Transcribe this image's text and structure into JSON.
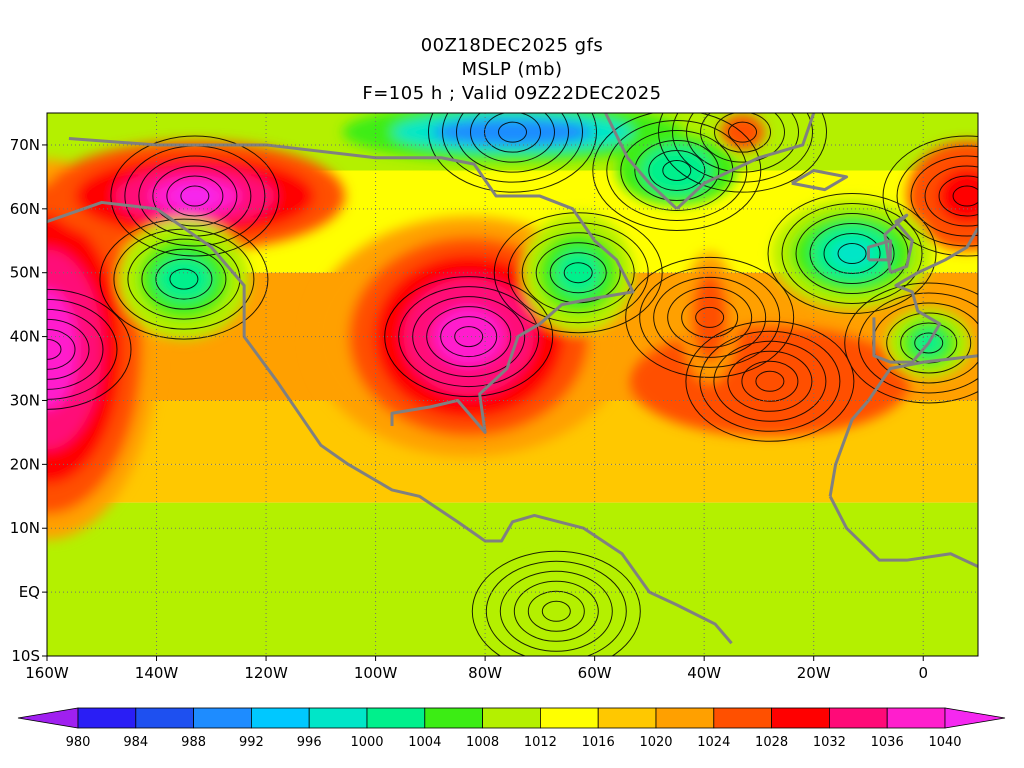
{
  "titles": {
    "line1": "00Z18DEC2025 gfs",
    "line2": "MSLP (mb)",
    "line3": "F=105 h ; Valid 09Z22DEC2025"
  },
  "map": {
    "lon_range": [
      -160,
      10
    ],
    "lat_range": [
      -10,
      75
    ],
    "lat_ticks": [
      {
        "value": 70,
        "label": "70N"
      },
      {
        "value": 60,
        "label": "60N"
      },
      {
        "value": 50,
        "label": "50N"
      },
      {
        "value": 40,
        "label": "40N"
      },
      {
        "value": 30,
        "label": "30N"
      },
      {
        "value": 20,
        "label": "20N"
      },
      {
        "value": 10,
        "label": "10N"
      },
      {
        "value": 0,
        "label": "EQ"
      },
      {
        "value": -10,
        "label": "10S"
      }
    ],
    "lon_ticks": [
      {
        "value": -160,
        "label": "160W"
      },
      {
        "value": -140,
        "label": "140W"
      },
      {
        "value": -120,
        "label": "120W"
      },
      {
        "value": -100,
        "label": "100W"
      },
      {
        "value": -80,
        "label": "80W"
      },
      {
        "value": -60,
        "label": "60W"
      },
      {
        "value": -40,
        "label": "40W"
      },
      {
        "value": -20,
        "label": "20W"
      },
      {
        "value": 0,
        "label": "0"
      }
    ],
    "grid": true,
    "centers": [
      {
        "type": "high",
        "name": "pacific-high",
        "lon": -160,
        "lat": 38,
        "value": 1038
      },
      {
        "type": "high",
        "name": "alaska-high",
        "lon": -133,
        "lat": 62,
        "value": 1040
      },
      {
        "type": "high",
        "name": "us-high",
        "lon": -83,
        "lat": 40,
        "value": 1036
      },
      {
        "type": "high",
        "name": "atlantic-high",
        "lon": -28,
        "lat": 33,
        "value": 1026
      },
      {
        "type": "high",
        "name": "midatlantic-ridge",
        "lon": -39,
        "lat": 43,
        "value": 1024
      },
      {
        "type": "high",
        "name": "europe-high",
        "lon": 8,
        "lat": 62,
        "value": 1030
      },
      {
        "type": "high",
        "name": "iceland-high",
        "lon": -33,
        "lat": 72,
        "value": 1026
      },
      {
        "type": "low",
        "name": "aleutian-low",
        "lon": -135,
        "lat": 49,
        "value": 998
      },
      {
        "type": "low",
        "name": "newfoundland-low",
        "lon": -63,
        "lat": 50,
        "value": 998
      },
      {
        "type": "low",
        "name": "north-atlantic-low",
        "lon": -13,
        "lat": 53,
        "value": 994
      },
      {
        "type": "low",
        "name": "iberia-low",
        "lon": 1,
        "lat": 39,
        "value": 998
      },
      {
        "type": "low",
        "name": "arctic-low",
        "lon": -75,
        "lat": 72,
        "value": 984
      },
      {
        "type": "low",
        "name": "greenland-low",
        "lon": -45,
        "lat": 66,
        "value": 998
      },
      {
        "type": "low",
        "name": "south-america-low",
        "lon": -67,
        "lat": -3,
        "value": 1007
      }
    ]
  },
  "colorbar": {
    "levels": [
      980,
      984,
      988,
      992,
      996,
      1000,
      1004,
      1008,
      1012,
      1016,
      1020,
      1024,
      1028,
      1032,
      1036,
      1040
    ],
    "colors": [
      "#a020f0",
      "#2a1ef5",
      "#1e50f0",
      "#1e8cff",
      "#00c8ff",
      "#00e6c8",
      "#00f08c",
      "#3ced14",
      "#b4f000",
      "#ffff00",
      "#ffc800",
      "#ffa000",
      "#ff5000",
      "#ff0000",
      "#ff0a78",
      "#ff1ecd",
      "#f528f0"
    ]
  }
}
